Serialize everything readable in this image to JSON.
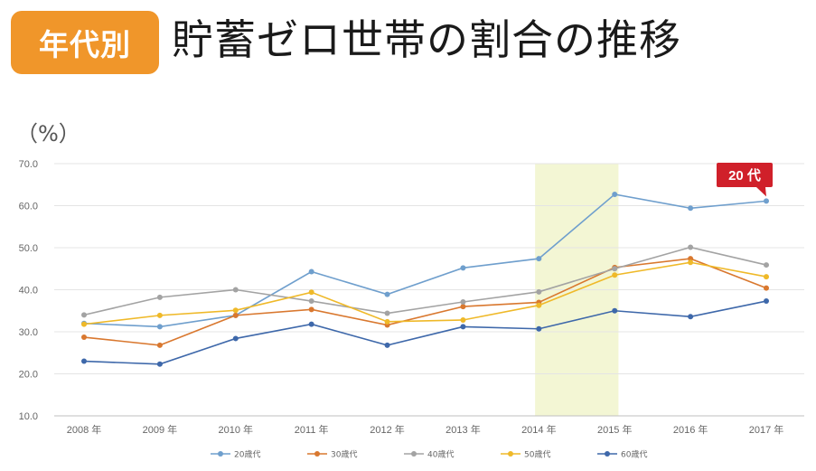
{
  "header": {
    "badge": "年代別",
    "title": "貯蓄ゼロ世帯の割合の推移"
  },
  "chart_data": {
    "type": "line",
    "unit_label": "（%）",
    "categories": [
      "2008 年",
      "2009 年",
      "2010 年",
      "2011 年",
      "2012 年",
      "2013 年",
      "2014 年",
      "2015 年",
      "2016 年",
      "2017 年"
    ],
    "y_ticks": [
      "10.0",
      "20.0",
      "30.0",
      "40.0",
      "50.0",
      "60.0",
      "70.0"
    ],
    "ylim": [
      10,
      70
    ],
    "grid": true,
    "legend_position": "bottom",
    "highlight": {
      "from": "2014 年",
      "to": "2015 年",
      "color": "#f3f6d4"
    },
    "callout": {
      "text": "20 代",
      "series": "20歳代",
      "color": "#d0202a"
    },
    "series": [
      {
        "name": "20歳代",
        "color": "#6f9fcd",
        "values": [
          32.0,
          31.2,
          33.9,
          44.3,
          38.9,
          45.2,
          47.4,
          62.7,
          59.4,
          61.1
        ]
      },
      {
        "name": "30歳代",
        "color": "#d9782f",
        "values": [
          28.7,
          26.8,
          33.9,
          35.3,
          31.6,
          36.0,
          37.0,
          45.3,
          47.4,
          40.4
        ]
      },
      {
        "name": "40歳代",
        "color": "#a3a3a3",
        "values": [
          34.0,
          38.2,
          40.0,
          37.3,
          34.4,
          37.1,
          39.5,
          45.0,
          50.1,
          45.9
        ]
      },
      {
        "name": "50歳代",
        "color": "#efb929",
        "values": [
          31.8,
          33.9,
          35.1,
          39.4,
          32.4,
          32.8,
          36.3,
          43.5,
          46.5,
          43.1
        ]
      },
      {
        "name": "60歳代",
        "color": "#3e68aa",
        "values": [
          23.0,
          22.3,
          28.4,
          31.8,
          26.8,
          31.2,
          30.7,
          35.0,
          33.6,
          37.3
        ]
      }
    ]
  }
}
